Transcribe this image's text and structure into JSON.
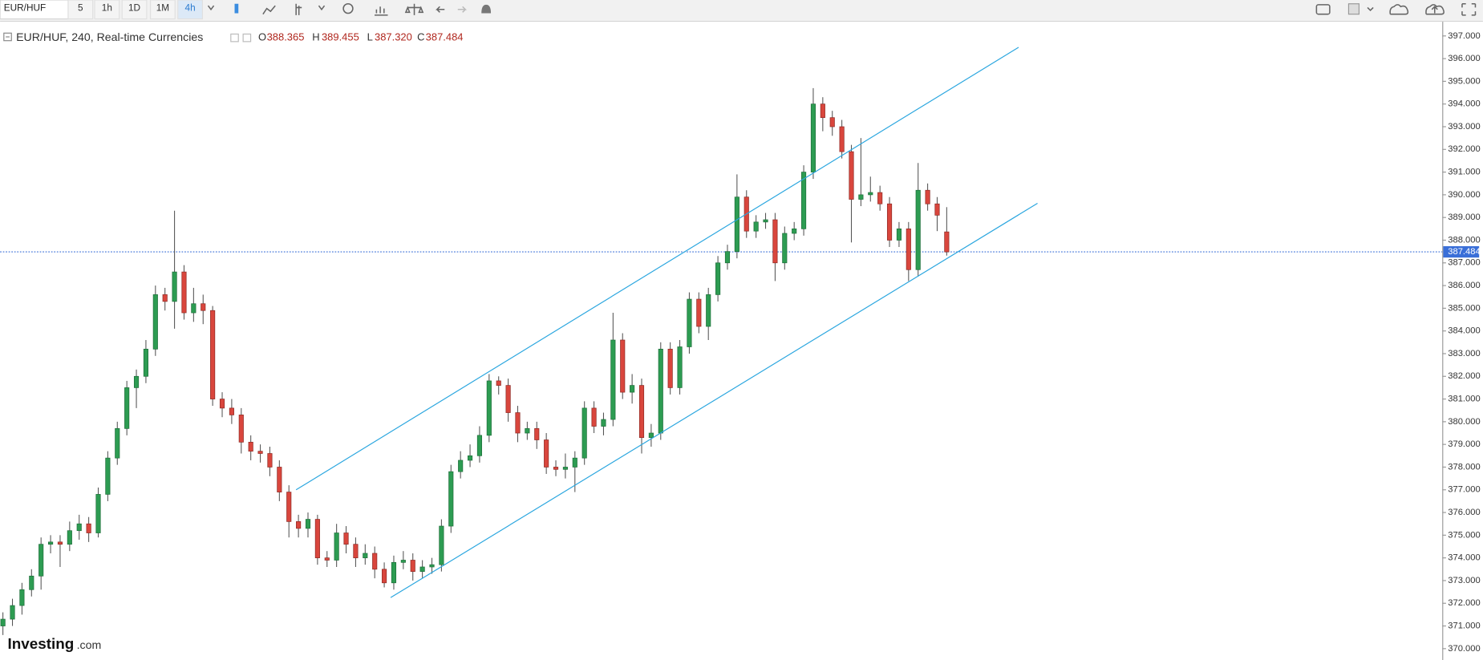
{
  "toolbar": {
    "symbol": "EUR/HUF",
    "intervals": [
      "5",
      "1h",
      "1D",
      "1M",
      "4h"
    ]
  },
  "logo": {
    "brand": "Investing",
    "suffix": ".com"
  },
  "chart_data": {
    "type": "candlestick",
    "title": "EUR/HUF, 240, Real-time Currencies",
    "ohlc_legend": {
      "o_label": "O",
      "open": "388.365",
      "h_label": "H",
      "high": "389.455",
      "l_label": "L",
      "low": "387.320",
      "c_label": "C",
      "close": "387.484"
    },
    "up_color": "#2d9c52",
    "down_color": "#d9463d",
    "line_color": "#2aa6df",
    "current_price": 387.484,
    "ylim": [
      369.7,
      397.4
    ],
    "yticks": [
      {
        "value": 370,
        "label": "370.000"
      },
      {
        "value": 371,
        "label": "371.000"
      },
      {
        "value": 372,
        "label": "372.000"
      },
      {
        "value": 373,
        "label": "373.000"
      },
      {
        "value": 374,
        "label": "374.000"
      },
      {
        "value": 375,
        "label": "375.000"
      },
      {
        "value": 376,
        "label": "376.000"
      },
      {
        "value": 377,
        "label": "377.000"
      },
      {
        "value": 378,
        "label": "378.000"
      },
      {
        "value": 379,
        "label": "379.000"
      },
      {
        "value": 380,
        "label": "380.000"
      },
      {
        "value": 381,
        "label": "381.000"
      },
      {
        "value": 382,
        "label": "382.000"
      },
      {
        "value": 383,
        "label": "383.000"
      },
      {
        "value": 384,
        "label": "384.000"
      },
      {
        "value": 385,
        "label": "385.000"
      },
      {
        "value": 386,
        "label": "386.000"
      },
      {
        "value": 387,
        "label": "387.000"
      },
      {
        "value": 388,
        "label": "388.000"
      },
      {
        "value": 389,
        "label": "389.000"
      },
      {
        "value": 390,
        "label": "390.000"
      },
      {
        "value": 391,
        "label": "391.000"
      },
      {
        "value": 392,
        "label": "392.000"
      },
      {
        "value": 393,
        "label": "393.000"
      },
      {
        "value": 394,
        "label": "394.000"
      },
      {
        "value": 395,
        "label": "395.000"
      },
      {
        "value": 396,
        "label": "396.000"
      },
      {
        "value": 397,
        "label": "397.000"
      }
    ],
    "candles": [
      [
        371.0,
        371.6,
        370.6,
        371.3
      ],
      [
        371.3,
        372.2,
        371.0,
        371.9
      ],
      [
        371.9,
        372.9,
        371.5,
        372.6
      ],
      [
        372.6,
        373.5,
        372.3,
        373.2
      ],
      [
        373.2,
        374.9,
        372.6,
        374.6
      ],
      [
        374.6,
        375.0,
        374.2,
        374.7
      ],
      [
        374.7,
        375.0,
        373.6,
        374.6
      ],
      [
        374.6,
        375.6,
        374.3,
        375.2
      ],
      [
        375.2,
        375.9,
        374.8,
        375.5
      ],
      [
        375.5,
        375.8,
        374.7,
        375.1
      ],
      [
        375.1,
        377.1,
        374.9,
        376.8
      ],
      [
        376.8,
        378.7,
        376.5,
        378.4
      ],
      [
        378.4,
        380.0,
        378.1,
        379.7
      ],
      [
        379.7,
        381.8,
        379.4,
        381.5
      ],
      [
        381.5,
        382.3,
        380.6,
        382.0
      ],
      [
        382.0,
        383.6,
        381.7,
        383.2
      ],
      [
        383.2,
        386.0,
        382.9,
        385.6
      ],
      [
        385.6,
        385.9,
        384.9,
        385.3
      ],
      [
        385.3,
        389.3,
        384.1,
        386.6
      ],
      [
        386.6,
        386.9,
        384.5,
        384.8
      ],
      [
        384.8,
        385.9,
        384.4,
        385.2
      ],
      [
        385.2,
        385.6,
        384.3,
        384.9
      ],
      [
        384.9,
        385.1,
        380.7,
        381.0
      ],
      [
        381.0,
        381.3,
        380.2,
        380.6
      ],
      [
        380.6,
        381.0,
        379.9,
        380.3
      ],
      [
        380.3,
        380.6,
        378.6,
        379.1
      ],
      [
        379.1,
        379.4,
        378.3,
        378.7
      ],
      [
        378.7,
        379.0,
        378.2,
        378.6
      ],
      [
        378.6,
        378.9,
        377.6,
        378.0
      ],
      [
        378.0,
        378.3,
        376.5,
        376.9
      ],
      [
        376.9,
        377.2,
        374.9,
        375.6
      ],
      [
        375.6,
        375.9,
        374.9,
        375.3
      ],
      [
        375.3,
        376.0,
        374.9,
        375.7
      ],
      [
        375.7,
        375.9,
        373.7,
        374.0
      ],
      [
        374.0,
        374.3,
        373.6,
        373.9
      ],
      [
        373.9,
        375.5,
        373.6,
        375.1
      ],
      [
        375.1,
        375.4,
        374.2,
        374.6
      ],
      [
        374.6,
        374.9,
        373.6,
        374.0
      ],
      [
        374.0,
        374.6,
        373.7,
        374.2
      ],
      [
        374.2,
        374.5,
        373.1,
        373.5
      ],
      [
        373.5,
        373.8,
        372.7,
        372.9
      ],
      [
        372.9,
        374.1,
        372.6,
        373.8
      ],
      [
        373.8,
        374.3,
        373.5,
        373.9
      ],
      [
        373.9,
        374.2,
        373.0,
        373.4
      ],
      [
        373.4,
        373.9,
        373.1,
        373.6
      ],
      [
        373.6,
        374.0,
        373.3,
        373.7
      ],
      [
        373.7,
        375.7,
        373.4,
        375.4
      ],
      [
        375.4,
        378.1,
        375.1,
        377.8
      ],
      [
        377.8,
        378.7,
        377.5,
        378.3
      ],
      [
        378.3,
        379.0,
        378.0,
        378.5
      ],
      [
        378.5,
        379.8,
        378.2,
        379.4
      ],
      [
        379.4,
        382.1,
        379.1,
        381.8
      ],
      [
        381.8,
        382.0,
        381.2,
        381.6
      ],
      [
        381.6,
        381.9,
        380.0,
        380.4
      ],
      [
        380.4,
        380.7,
        379.1,
        379.5
      ],
      [
        379.5,
        380.0,
        379.2,
        379.7
      ],
      [
        379.7,
        380.0,
        378.8,
        379.2
      ],
      [
        379.2,
        379.5,
        377.7,
        378.0
      ],
      [
        378.0,
        378.3,
        377.6,
        377.9
      ],
      [
        377.9,
        378.6,
        377.5,
        378.0
      ],
      [
        378.0,
        378.7,
        376.9,
        378.4
      ],
      [
        378.4,
        380.9,
        378.1,
        380.6
      ],
      [
        380.6,
        380.9,
        379.5,
        379.8
      ],
      [
        379.8,
        380.4,
        379.4,
        380.1
      ],
      [
        380.1,
        384.8,
        379.8,
        383.6
      ],
      [
        383.6,
        383.9,
        381.0,
        381.3
      ],
      [
        381.3,
        382.1,
        380.8,
        381.6
      ],
      [
        381.6,
        381.9,
        378.6,
        379.3
      ],
      [
        379.3,
        379.9,
        378.9,
        379.5
      ],
      [
        379.5,
        383.5,
        379.2,
        383.2
      ],
      [
        383.2,
        383.5,
        381.2,
        381.5
      ],
      [
        381.5,
        383.6,
        381.2,
        383.3
      ],
      [
        383.3,
        385.7,
        383.0,
        385.4
      ],
      [
        385.4,
        385.7,
        383.9,
        384.2
      ],
      [
        384.2,
        385.9,
        383.6,
        385.6
      ],
      [
        385.6,
        387.3,
        385.3,
        387.0
      ],
      [
        387.0,
        387.8,
        386.7,
        387.5
      ],
      [
        387.5,
        390.9,
        387.2,
        389.9
      ],
      [
        389.9,
        390.2,
        388.1,
        388.4
      ],
      [
        388.4,
        389.1,
        388.1,
        388.8
      ],
      [
        388.8,
        389.2,
        388.5,
        388.9
      ],
      [
        388.9,
        389.2,
        386.2,
        387.0
      ],
      [
        387.0,
        388.6,
        386.7,
        388.3
      ],
      [
        388.3,
        388.8,
        388.0,
        388.5
      ],
      [
        388.5,
        391.3,
        388.2,
        391.0
      ],
      [
        391.0,
        394.7,
        390.7,
        394.0
      ],
      [
        394.0,
        394.3,
        392.8,
        393.4
      ],
      [
        393.4,
        393.7,
        392.6,
        393.0
      ],
      [
        393.0,
        393.3,
        391.6,
        391.9
      ],
      [
        391.9,
        392.2,
        387.9,
        389.8
      ],
      [
        389.8,
        392.5,
        389.5,
        390.0
      ],
      [
        390.0,
        390.8,
        389.7,
        390.1
      ],
      [
        390.1,
        390.4,
        389.3,
        389.6
      ],
      [
        389.6,
        389.9,
        387.7,
        388.0
      ],
      [
        388.0,
        388.8,
        387.7,
        388.5
      ],
      [
        388.5,
        388.8,
        386.2,
        386.7
      ],
      [
        386.7,
        391.4,
        386.4,
        390.2
      ],
      [
        390.2,
        390.5,
        389.3,
        389.6
      ],
      [
        389.6,
        389.9,
        388.4,
        389.1
      ],
      [
        388.365,
        389.455,
        387.32,
        387.484
      ]
    ]
  }
}
